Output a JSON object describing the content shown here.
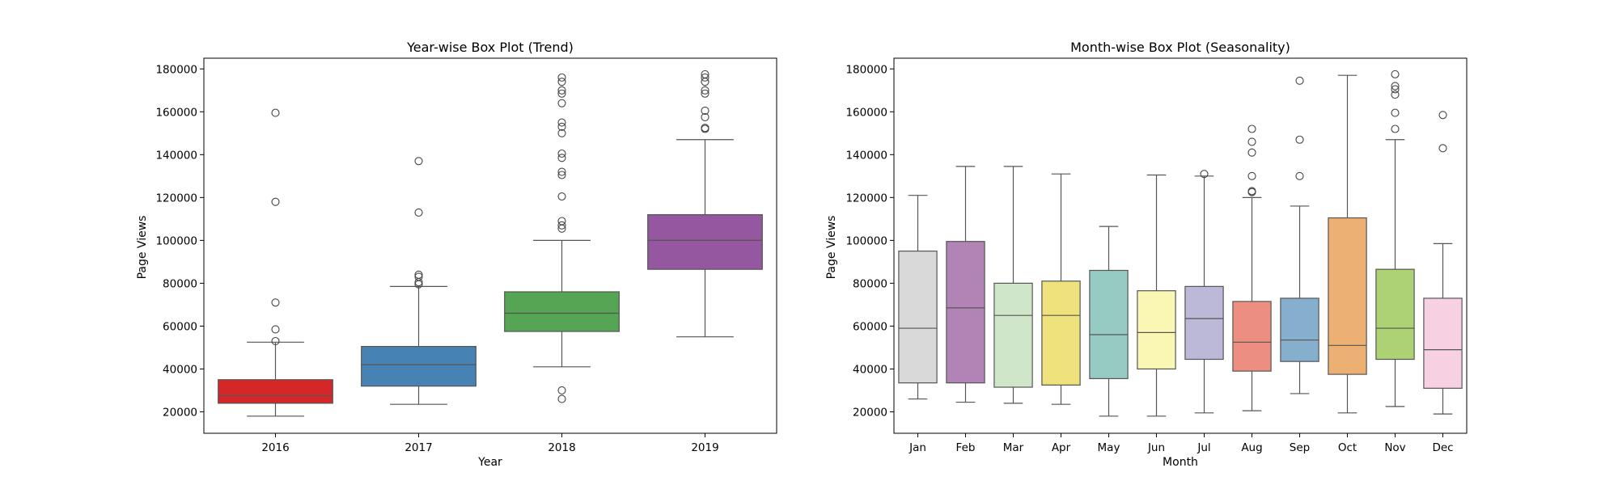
{
  "chart_data": [
    {
      "type": "box",
      "title": "Year-wise Box Plot (Trend)",
      "xlabel": "Year",
      "ylabel": "Page Views",
      "ylim": [
        10000,
        185000
      ],
      "yticks": [
        20000,
        40000,
        60000,
        80000,
        100000,
        120000,
        140000,
        160000,
        180000
      ],
      "categories": [
        "2016",
        "2017",
        "2018",
        "2019"
      ],
      "colors": [
        "#d62728",
        "#4682b4",
        "#55a555",
        "#9457a0"
      ],
      "boxes": [
        {
          "whisker_low": 18000,
          "q1": 24000,
          "median": 27500,
          "q3": 35000,
          "whisker_high": 52500,
          "outliers": [
            53000,
            58500,
            71000,
            118000,
            159500
          ]
        },
        {
          "whisker_low": 23500,
          "q1": 32000,
          "median": 42000,
          "q3": 50500,
          "whisker_high": 78500,
          "outliers": [
            79500,
            80500,
            83000,
            84000,
            113000,
            137000
          ]
        },
        {
          "whisker_low": 41000,
          "q1": 57500,
          "median": 66000,
          "q3": 76000,
          "whisker_high": 100000,
          "outliers": [
            26000,
            30000,
            105500,
            107000,
            109000,
            120500,
            130500,
            132000,
            138500,
            140500,
            150000,
            153000,
            155000,
            164000,
            168500,
            170000,
            174000,
            176000
          ]
        },
        {
          "whisker_low": 55000,
          "q1": 86500,
          "median": 100000,
          "q3": 112000,
          "whisker_high": 147000,
          "outliers": [
            152000,
            152500,
            157500,
            160500,
            168500,
            170000,
            174000,
            176000,
            177500
          ]
        }
      ]
    },
    {
      "type": "box",
      "title": "Month-wise Box Plot (Seasonality)",
      "xlabel": "Month",
      "ylabel": "Page Views",
      "ylim": [
        10000,
        185000
      ],
      "yticks": [
        20000,
        40000,
        60000,
        80000,
        100000,
        120000,
        140000,
        160000,
        180000
      ],
      "categories": [
        "Jan",
        "Feb",
        "Mar",
        "Apr",
        "May",
        "Jun",
        "Jul",
        "Aug",
        "Sep",
        "Oct",
        "Nov",
        "Dec"
      ],
      "colors": [
        "#d9d9d9",
        "#b284b5",
        "#cfe6c8",
        "#efe17b",
        "#95cbc2",
        "#faf6b3",
        "#bcb8d8",
        "#ec8e80",
        "#86aecd",
        "#ecb172",
        "#add274",
        "#f7d0e2"
      ],
      "boxes": [
        {
          "whisker_low": 26000,
          "q1": 33500,
          "median": 59000,
          "q3": 95000,
          "whisker_high": 121000,
          "outliers": []
        },
        {
          "whisker_low": 24500,
          "q1": 33500,
          "median": 68500,
          "q3": 99500,
          "whisker_high": 134500,
          "outliers": []
        },
        {
          "whisker_low": 24000,
          "q1": 31500,
          "median": 65000,
          "q3": 80000,
          "whisker_high": 134500,
          "outliers": []
        },
        {
          "whisker_low": 23500,
          "q1": 32500,
          "median": 65000,
          "q3": 81000,
          "whisker_high": 131000,
          "outliers": []
        },
        {
          "whisker_low": 18000,
          "q1": 35500,
          "median": 56000,
          "q3": 86000,
          "whisker_high": 106500,
          "outliers": []
        },
        {
          "whisker_low": 18000,
          "q1": 40000,
          "median": 57000,
          "q3": 76500,
          "whisker_high": 130500,
          "outliers": []
        },
        {
          "whisker_low": 19500,
          "q1": 44500,
          "median": 63500,
          "q3": 78500,
          "whisker_high": 130000,
          "outliers": [
            131000
          ]
        },
        {
          "whisker_low": 20500,
          "q1": 39000,
          "median": 52500,
          "q3": 71500,
          "whisker_high": 120000,
          "outliers": [
            122500,
            123000,
            130000,
            141000,
            146000,
            152000
          ]
        },
        {
          "whisker_low": 28500,
          "q1": 43500,
          "median": 53500,
          "q3": 73000,
          "whisker_high": 116000,
          "outliers": [
            130000,
            147000,
            174500
          ]
        },
        {
          "whisker_low": 19500,
          "q1": 37500,
          "median": 51000,
          "q3": 110500,
          "whisker_high": 177000,
          "outliers": []
        },
        {
          "whisker_low": 22500,
          "q1": 44500,
          "median": 59000,
          "q3": 86500,
          "whisker_high": 147000,
          "outliers": [
            152000,
            159500,
            168000,
            170500,
            172000,
            177500
          ]
        },
        {
          "whisker_low": 19000,
          "q1": 31000,
          "median": 49000,
          "q3": 73000,
          "whisker_high": 98500,
          "outliers": [
            143000,
            158500
          ]
        }
      ]
    }
  ]
}
